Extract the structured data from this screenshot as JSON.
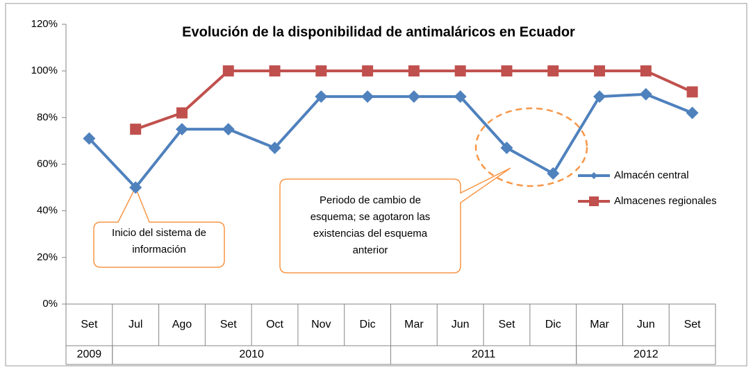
{
  "chart_data": {
    "type": "line",
    "title": "Evolución de la disponibilidad  de antimaláricos  en Ecuador",
    "categories": [
      "Set",
      "Jul",
      "Ago",
      "Set",
      "Oct",
      "Nov",
      "Dic",
      "Mar",
      "Jun",
      "Set",
      "Dic",
      "Mar",
      "Jun",
      "Set"
    ],
    "category_groups": [
      {
        "label": "2009",
        "count": 1
      },
      {
        "label": "2010",
        "count": 6
      },
      {
        "label": "2011",
        "count": 4
      },
      {
        "label": "2012",
        "count": 3
      }
    ],
    "series": [
      {
        "name": "Almacén central",
        "color": "#4f81bd",
        "marker": "diamond",
        "values": [
          71,
          50,
          75,
          75,
          67,
          89,
          89,
          89,
          89,
          67,
          56,
          89,
          90,
          82
        ]
      },
      {
        "name": "Almacenes regionales",
        "color": "#c0504d",
        "marker": "square",
        "values": [
          null,
          75,
          82,
          100,
          100,
          100,
          100,
          100,
          100,
          100,
          100,
          100,
          100,
          91
        ]
      }
    ],
    "ylim": [
      0,
      120
    ],
    "yticks": [
      {
        "value": 0,
        "label": "0%"
      },
      {
        "value": 20,
        "label": "20%"
      },
      {
        "value": 40,
        "label": "40%"
      },
      {
        "value": 60,
        "label": "60%"
      },
      {
        "value": 80,
        "label": "80%"
      },
      {
        "value": 100,
        "label": "100%"
      },
      {
        "value": 120,
        "label": "120%"
      }
    ],
    "grid": false,
    "legend": "right",
    "annotations": [
      {
        "lines": [
          "Inicio del sistema de",
          "información"
        ]
      },
      {
        "lines": [
          "Periodo de cambio de",
          "esquema; se agotaron las",
          "existencias  del esquema",
          "anterior"
        ]
      }
    ]
  }
}
